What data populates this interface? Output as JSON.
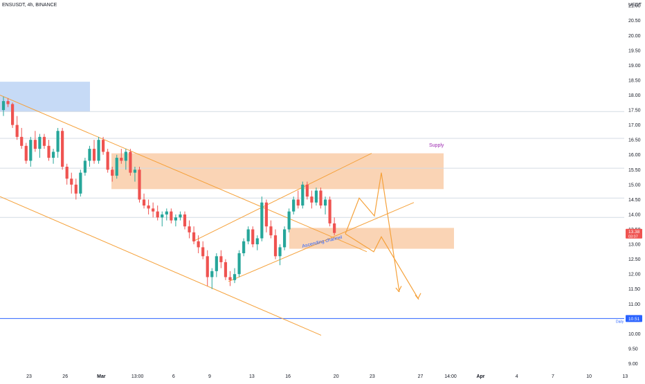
{
  "header": {
    "symbol": "ENSUSDT, 4h, BINANCE",
    "currency": "USDT"
  },
  "chart_data": {
    "type": "candlestick",
    "title": "ENSUSDT, 4h, BINANCE",
    "ylim": [
      8.85,
      21.05
    ],
    "grid": false,
    "y_ticks": [
      "21.00",
      "20.50",
      "20.00",
      "19.50",
      "19.00",
      "18.50",
      "18.00",
      "17.50",
      "17.00",
      "16.50",
      "16.00",
      "15.50",
      "15.00",
      "14.50",
      "14.00",
      "13.50",
      "13.00",
      "12.50",
      "12.00",
      "11.50",
      "11.00",
      "10.50",
      "10.00",
      "9.50",
      "9.00"
    ],
    "x_ticks": [
      "23",
      "26",
      "Mar",
      "13:00",
      "6",
      "9",
      "13",
      "16",
      "20",
      "23",
      "27",
      "14:00",
      "Apr",
      "4",
      "7",
      "10",
      "13"
    ],
    "x_tick_positions": [
      0,
      6,
      12,
      18,
      24,
      30,
      37,
      43,
      51,
      57,
      65,
      70,
      75,
      81,
      87,
      93,
      99
    ],
    "n_slots": 99,
    "last_price": "13.38",
    "countdown": "03:07",
    "daily_level": {
      "value": 10.51,
      "price_label": "10.51",
      "tag": "Daily"
    },
    "supply_label": "Supply",
    "channel_label": "Ascending channel",
    "candles": [
      [
        17.5,
        17.95,
        17.3,
        17.8
      ],
      [
        17.8,
        17.9,
        17.6,
        17.7
      ],
      [
        17.7,
        17.75,
        16.9,
        17.0
      ],
      [
        17.0,
        17.3,
        16.5,
        16.6
      ],
      [
        16.6,
        16.9,
        16.2,
        16.3
      ],
      [
        16.3,
        16.4,
        15.7,
        15.8
      ],
      [
        15.8,
        16.6,
        15.6,
        16.5
      ],
      [
        16.5,
        16.8,
        16.1,
        16.2
      ],
      [
        16.2,
        16.7,
        15.9,
        16.6
      ],
      [
        16.6,
        16.7,
        16.2,
        16.3
      ],
      [
        16.3,
        16.5,
        15.8,
        15.9
      ],
      [
        15.9,
        16.2,
        15.7,
        16.1
      ],
      [
        16.1,
        16.9,
        15.9,
        16.8
      ],
      [
        16.8,
        16.9,
        15.5,
        15.6
      ],
      [
        15.6,
        15.7,
        15.0,
        15.2
      ],
      [
        15.2,
        15.4,
        14.7,
        15.0
      ],
      [
        15.0,
        15.2,
        14.5,
        14.7
      ],
      [
        14.7,
        15.5,
        14.6,
        15.4
      ],
      [
        15.4,
        15.9,
        15.3,
        15.8
      ],
      [
        15.8,
        16.3,
        15.6,
        16.2
      ],
      [
        16.2,
        16.5,
        15.7,
        15.8
      ],
      [
        15.8,
        16.6,
        15.7,
        16.5
      ],
      [
        16.5,
        16.6,
        16.0,
        16.1
      ],
      [
        16.1,
        16.2,
        15.4,
        15.5
      ],
      [
        15.5,
        15.6,
        15.1,
        15.3
      ],
      [
        15.3,
        16.0,
        15.2,
        15.9
      ],
      [
        15.9,
        16.2,
        15.7,
        15.8
      ],
      [
        15.8,
        16.2,
        15.5,
        16.1
      ],
      [
        16.1,
        16.2,
        15.3,
        15.4
      ],
      [
        15.4,
        15.6,
        15.1,
        15.5
      ],
      [
        15.5,
        15.6,
        14.4,
        14.5
      ],
      [
        14.5,
        14.7,
        14.2,
        14.3
      ],
      [
        14.3,
        14.5,
        14.0,
        14.2
      ],
      [
        14.2,
        14.4,
        13.9,
        14.1
      ],
      [
        14.1,
        14.3,
        13.8,
        13.9
      ],
      [
        13.9,
        14.1,
        13.6,
        14.0
      ],
      [
        14.0,
        14.2,
        13.8,
        14.1
      ],
      [
        14.1,
        14.2,
        13.7,
        13.8
      ],
      [
        13.8,
        14.0,
        13.6,
        13.9
      ],
      [
        13.9,
        14.1,
        13.8,
        14.0
      ],
      [
        14.0,
        14.1,
        13.5,
        13.6
      ],
      [
        13.6,
        13.8,
        13.2,
        13.4
      ],
      [
        13.4,
        13.6,
        13.0,
        13.1
      ],
      [
        13.1,
        13.3,
        12.7,
        12.9
      ],
      [
        12.9,
        13.1,
        12.5,
        12.6
      ],
      [
        12.6,
        12.8,
        11.6,
        11.9
      ],
      [
        11.9,
        12.2,
        11.5,
        12.1
      ],
      [
        12.1,
        12.7,
        11.9,
        12.6
      ],
      [
        12.6,
        12.8,
        12.2,
        12.4
      ],
      [
        12.4,
        12.5,
        11.8,
        11.9
      ],
      [
        11.9,
        12.1,
        11.6,
        11.8
      ],
      [
        11.8,
        12.2,
        11.7,
        12.0
      ],
      [
        12.0,
        12.8,
        11.9,
        12.7
      ],
      [
        12.7,
        13.2,
        12.6,
        13.1
      ],
      [
        13.1,
        13.6,
        13.0,
        13.5
      ],
      [
        13.5,
        13.6,
        12.9,
        13.0
      ],
      [
        13.0,
        13.3,
        12.8,
        13.2
      ],
      [
        13.2,
        14.6,
        13.1,
        14.4
      ],
      [
        14.4,
        14.5,
        13.4,
        13.6
      ],
      [
        13.6,
        13.8,
        13.2,
        13.3
      ],
      [
        13.3,
        13.5,
        12.5,
        12.6
      ],
      [
        12.6,
        13.0,
        12.3,
        12.9
      ],
      [
        12.9,
        13.6,
        12.8,
        13.5
      ],
      [
        13.5,
        14.2,
        13.4,
        14.1
      ],
      [
        14.1,
        14.6,
        14.0,
        14.5
      ],
      [
        14.5,
        14.8,
        14.2,
        14.3
      ],
      [
        14.3,
        15.1,
        14.2,
        15.0
      ],
      [
        15.0,
        15.1,
        14.5,
        14.6
      ],
      [
        14.6,
        14.8,
        14.2,
        14.4
      ],
      [
        14.4,
        14.9,
        14.3,
        14.8
      ],
      [
        14.8,
        14.9,
        14.2,
        14.3
      ],
      [
        14.3,
        14.6,
        14.0,
        14.5
      ],
      [
        14.5,
        14.6,
        13.6,
        13.7
      ],
      [
        13.7,
        13.9,
        13.3,
        13.38
      ]
    ]
  },
  "colors": {
    "up": "#26a69a",
    "down": "#ef5350",
    "trendline": "#f5a13a",
    "zone_orange": "#f9c9a3",
    "zone_blue": "#b3cdf3",
    "daily_line": "#2962ff",
    "supply_text": "#9c27b0",
    "channel_text": "#2962ff",
    "hline": "#d4dbe4",
    "price_tag": "#ef5350",
    "daily_tag": "#2962ff",
    "text": "#131722"
  }
}
